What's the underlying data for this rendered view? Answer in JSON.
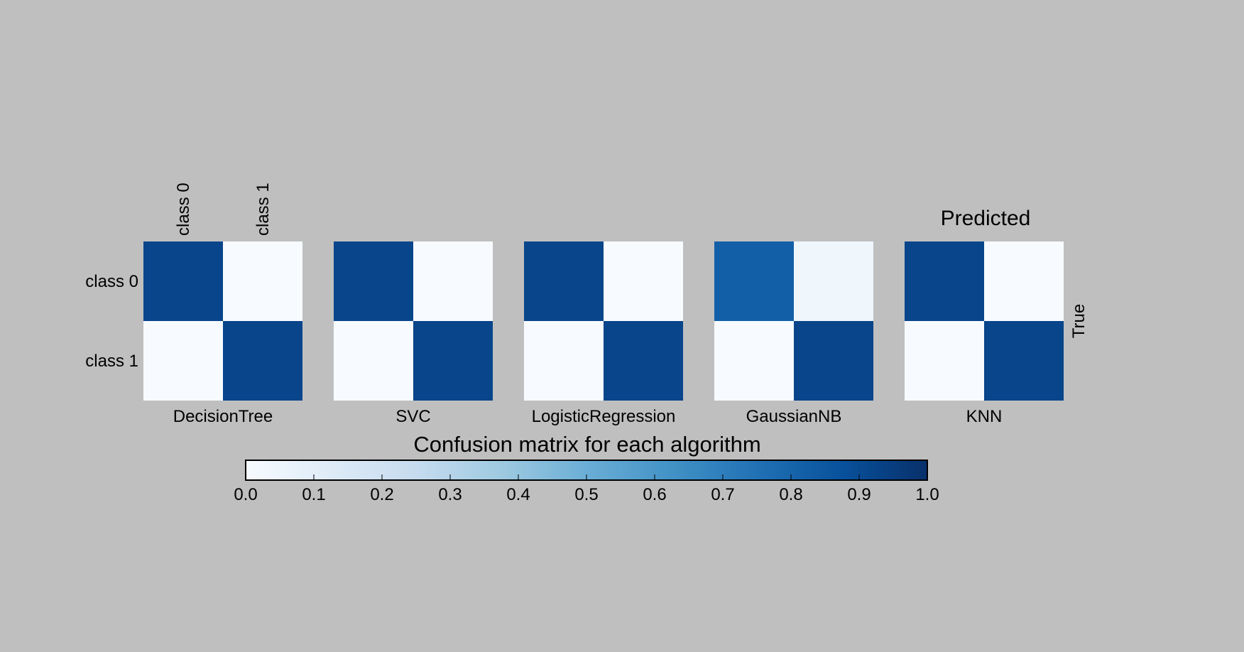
{
  "chart_data": {
    "type": "heatmap",
    "title": "Confusion matrix for each algorithm",
    "xlabel": "Predicted",
    "ylabel": "True",
    "classes": [
      "class 0",
      "class 1"
    ],
    "colormap": "Blues",
    "background_color": "#bfbfbf",
    "matrices": [
      {
        "name": "DecisionTree",
        "values": [
          [
            0.92,
            0.0
          ],
          [
            0.0,
            0.92
          ]
        ]
      },
      {
        "name": "SVC",
        "values": [
          [
            0.92,
            0.0
          ],
          [
            0.0,
            0.92
          ]
        ]
      },
      {
        "name": "LogisticRegression",
        "values": [
          [
            0.92,
            0.0
          ],
          [
            0.0,
            0.92
          ]
        ]
      },
      {
        "name": "GaussianNB",
        "values": [
          [
            0.82,
            0.04
          ],
          [
            0.0,
            0.92
          ]
        ]
      },
      {
        "name": "KNN",
        "values": [
          [
            0.92,
            0.0
          ],
          [
            0.0,
            0.92
          ]
        ]
      }
    ],
    "colorbar": {
      "range": [
        0,
        1
      ],
      "ticks": [
        "0.0",
        "0.1",
        "0.2",
        "0.3",
        "0.4",
        "0.5",
        "0.6",
        "0.7",
        "0.8",
        "0.9",
        "1.0"
      ]
    }
  }
}
